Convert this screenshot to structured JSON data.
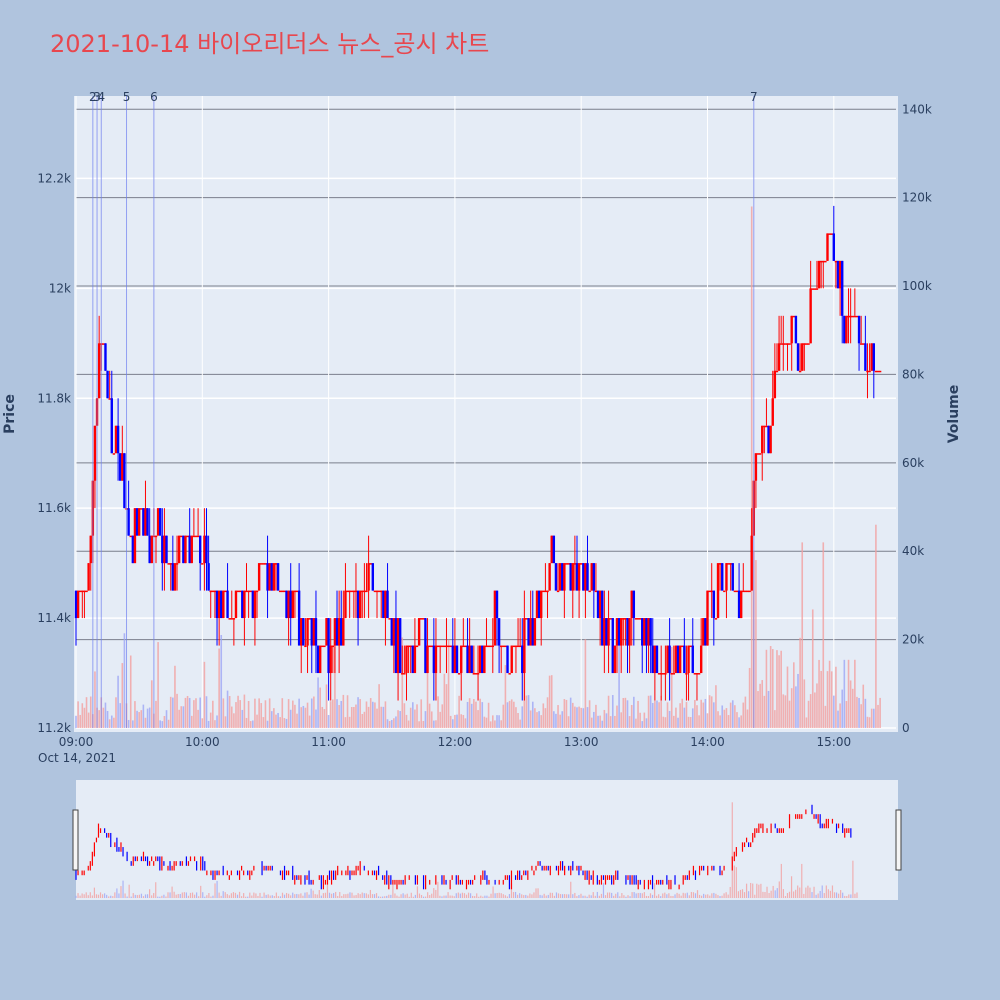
{
  "title": "2021-10-14 바이오리더스 뉴스_공시 차트",
  "colors": {
    "background": "#b0c4de",
    "plot_bg": "#e5ecf6",
    "up": "#ff0000",
    "down": "#0000ff",
    "title": "#e8474e",
    "text": "#2a3f5f"
  },
  "chart_data": {
    "type": "candlestick",
    "date_label": "Oct 14, 2021",
    "ylabel": "Price",
    "y2label": "Volume",
    "ylim": [
      11200,
      12350
    ],
    "y2lim": [
      0,
      143000
    ],
    "xlim": [
      "09:00",
      "15:30"
    ],
    "price_ticks": [
      {
        "value": 11200,
        "label": "11.2k"
      },
      {
        "value": 11400,
        "label": "11.4k"
      },
      {
        "value": 11600,
        "label": "11.6k"
      },
      {
        "value": 11800,
        "label": "11.8k"
      },
      {
        "value": 12000,
        "label": "12k"
      },
      {
        "value": 12200,
        "label": "12.2k"
      }
    ],
    "volume_ticks": [
      {
        "value": 0,
        "label": "0"
      },
      {
        "value": 20000,
        "label": "20k"
      },
      {
        "value": 40000,
        "label": "40k"
      },
      {
        "value": 60000,
        "label": "60k"
      },
      {
        "value": 80000,
        "label": "80k"
      },
      {
        "value": 100000,
        "label": "100k"
      },
      {
        "value": 120000,
        "label": "120k"
      },
      {
        "value": 140000,
        "label": "140k"
      }
    ],
    "time_ticks": [
      "09:00",
      "10:00",
      "11:00",
      "12:00",
      "13:00",
      "14:00",
      "15:00"
    ],
    "annotations": [
      {
        "label": "2",
        "time": "09:08"
      },
      {
        "label": "3",
        "time": "09:10"
      },
      {
        "label": "4",
        "time": "09:12"
      },
      {
        "label": "5",
        "time": "09:24"
      },
      {
        "label": "6",
        "time": "09:37"
      },
      {
        "label": "7",
        "time": "14:22"
      }
    ],
    "price_keypoints": [
      [
        "09:00",
        11450
      ],
      [
        "09:05",
        11420
      ],
      [
        "09:08",
        11650
      ],
      [
        "09:11",
        11900
      ],
      [
        "09:13",
        11850
      ],
      [
        "09:16",
        11750
      ],
      [
        "09:20",
        11720
      ],
      [
        "09:24",
        11600
      ],
      [
        "09:27",
        11530
      ],
      [
        "09:30",
        11600
      ],
      [
        "09:35",
        11520
      ],
      [
        "09:40",
        11560
      ],
      [
        "09:45",
        11480
      ],
      [
        "09:50",
        11520
      ],
      [
        "10:00",
        11510
      ],
      [
        "10:05",
        11430
      ],
      [
        "10:15",
        11420
      ],
      [
        "10:25",
        11450
      ],
      [
        "10:30",
        11500
      ],
      [
        "10:40",
        11450
      ],
      [
        "10:50",
        11380
      ],
      [
        "10:55",
        11330
      ],
      [
        "11:00",
        11350
      ],
      [
        "11:05",
        11380
      ],
      [
        "11:10",
        11450
      ],
      [
        "11:15",
        11430
      ],
      [
        "11:20",
        11480
      ],
      [
        "11:25",
        11440
      ],
      [
        "11:30",
        11380
      ],
      [
        "11:35",
        11330
      ],
      [
        "11:40",
        11350
      ],
      [
        "11:45",
        11370
      ],
      [
        "11:50",
        11330
      ],
      [
        "12:00",
        11320
      ],
      [
        "12:05",
        11330
      ],
      [
        "12:10",
        11310
      ],
      [
        "12:15",
        11350
      ],
      [
        "12:20",
        11400
      ],
      [
        "12:25",
        11350
      ],
      [
        "12:30",
        11330
      ],
      [
        "12:35",
        11370
      ],
      [
        "12:40",
        11450
      ],
      [
        "12:45",
        11500
      ],
      [
        "12:50",
        11470
      ],
      [
        "12:55",
        11480
      ],
      [
        "13:00",
        11500
      ],
      [
        "13:05",
        11460
      ],
      [
        "13:10",
        11380
      ],
      [
        "13:15",
        11360
      ],
      [
        "13:20",
        11380
      ],
      [
        "13:25",
        11400
      ],
      [
        "13:30",
        11370
      ],
      [
        "13:35",
        11340
      ],
      [
        "13:40",
        11330
      ],
      [
        "13:45",
        11340
      ],
      [
        "13:50",
        11330
      ],
      [
        "13:55",
        11340
      ],
      [
        "14:00",
        11420
      ],
      [
        "14:05",
        11460
      ],
      [
        "14:10",
        11470
      ],
      [
        "14:15",
        11450
      ],
      [
        "14:20",
        11480
      ],
      [
        "14:22",
        11700
      ],
      [
        "14:25",
        11720
      ],
      [
        "14:30",
        11760
      ],
      [
        "14:35",
        11880
      ],
      [
        "14:40",
        11920
      ],
      [
        "14:45",
        11860
      ],
      [
        "14:50",
        11980
      ],
      [
        "14:55",
        12050
      ],
      [
        "15:00",
        12100
      ],
      [
        "15:03",
        12000
      ],
      [
        "15:05",
        11920
      ],
      [
        "15:10",
        11950
      ],
      [
        "15:15",
        11880
      ],
      [
        "15:20",
        11870
      ],
      [
        "15:22",
        11830
      ]
    ]
  }
}
